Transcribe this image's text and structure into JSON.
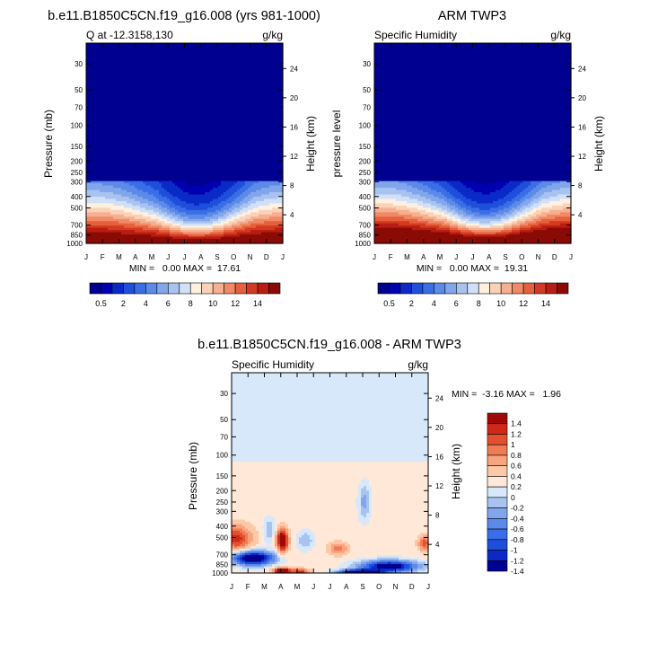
{
  "figure": {
    "colors": {
      "n21": [
        "#000090",
        "#0000b0",
        "#0a2ac8",
        "#1f4fda",
        "#3a6ee6",
        "#5c8ae8",
        "#82a6ec",
        "#a9c3f0",
        "#d0e0f8",
        "#fff0e0",
        "#fad2b8",
        "#f6b090",
        "#f08a66",
        "#e6603e",
        "#d23a22",
        "#b81c12",
        "#8a0a06"
      ],
      "diff": [
        "#000090",
        "#0a2ac8",
        "#1f4fda",
        "#3a6ee6",
        "#5c8ae8",
        "#82a6ec",
        "#a9c3f0",
        "#d6e8fa",
        "#ffe8d8",
        "#fcc8a8",
        "#f8a47e",
        "#f07c56",
        "#e4502e",
        "#d02818",
        "#a00a06"
      ]
    }
  },
  "chart_data": [
    {
      "type": "heatmap",
      "title": "b.e11.B1850C5CN.f19_g16.008 (yrs 981-1000)",
      "left_label": "Q at -12.3158,130",
      "right_label": "g/kg",
      "ylabel": "Pressure (mb)",
      "ylabel_right": "Height (km)",
      "x_ticks": [
        "J",
        "F",
        "M",
        "A",
        "M",
        "J",
        "J",
        "A",
        "S",
        "O",
        "N",
        "D",
        "J"
      ],
      "y_ticks": [
        30,
        50,
        70,
        100,
        150,
        200,
        250,
        300,
        400,
        500,
        700,
        850,
        1000
      ],
      "y_range_mb": [
        20,
        1000
      ],
      "height_ticks_km": [
        24,
        20,
        16,
        12,
        8,
        4
      ],
      "stats": "MIN =   0.00 MAX =  17.61",
      "min": 0.0,
      "max": 17.61,
      "colorbar": {
        "labels": [
          "0.5",
          "2",
          "4",
          "6",
          "8",
          "10",
          "12",
          "14"
        ],
        "levels": [
          0.5,
          1,
          2,
          3,
          4,
          5,
          6,
          7,
          8,
          9,
          10,
          11,
          12,
          13,
          14,
          15
        ]
      }
    },
    {
      "type": "heatmap",
      "title": "ARM TWP3",
      "left_label": "Specific Humidity",
      "right_label": "g/kg",
      "ylabel": "pressure level",
      "ylabel_right": "Height (km)",
      "x_ticks": [
        "J",
        "F",
        "M",
        "A",
        "M",
        "J",
        "J",
        "A",
        "S",
        "O",
        "N",
        "D",
        "J"
      ],
      "y_ticks": [
        30,
        50,
        70,
        100,
        150,
        200,
        250,
        300,
        400,
        500,
        700,
        850,
        1000
      ],
      "y_range_mb": [
        20,
        1000
      ],
      "height_ticks_km": [
        24,
        20,
        16,
        12,
        8,
        4
      ],
      "stats": "MIN =   0.00 MAX =  19.31",
      "min": 0.0,
      "max": 19.31,
      "colorbar": {
        "labels": [
          "0.5",
          "2",
          "4",
          "6",
          "8",
          "10",
          "12",
          "14"
        ],
        "levels": [
          0.5,
          1,
          2,
          3,
          4,
          5,
          6,
          7,
          8,
          9,
          10,
          11,
          12,
          13,
          14,
          15
        ]
      }
    },
    {
      "type": "heatmap",
      "title": "b.e11.B1850C5CN.f19_g16.008 - ARM TWP3",
      "left_label": "Specific Humidity",
      "right_label": "g/kg",
      "ylabel": "Pressure (mb)",
      "ylabel_right": "Height (km)",
      "x_ticks": [
        "J",
        "F",
        "M",
        "A",
        "M",
        "J",
        "J",
        "A",
        "S",
        "O",
        "N",
        "D",
        "J"
      ],
      "y_ticks": [
        30,
        50,
        70,
        100,
        150,
        200,
        250,
        300,
        400,
        500,
        700,
        850,
        1000
      ],
      "y_range_mb": [
        20,
        1000
      ],
      "height_ticks_km": [
        24,
        20,
        16,
        12,
        8,
        4
      ],
      "stats": "MIN =  -3.16 MAX =   1.96",
      "min": -3.16,
      "max": 1.96,
      "colorbar": {
        "labels": [
          "1.4",
          "1.2",
          "1",
          "0.8",
          "0.6",
          "0.4",
          "0.2",
          "0",
          "-0.2",
          "-0.4",
          "-0.6",
          "-0.8",
          "-1",
          "-1.2",
          "-1.4"
        ],
        "levels": [
          -1.4,
          -1.2,
          -1,
          -0.8,
          -0.6,
          -0.4,
          -0.2,
          0,
          0.2,
          0.4,
          0.6,
          0.8,
          1,
          1.2,
          1.4
        ]
      }
    }
  ]
}
